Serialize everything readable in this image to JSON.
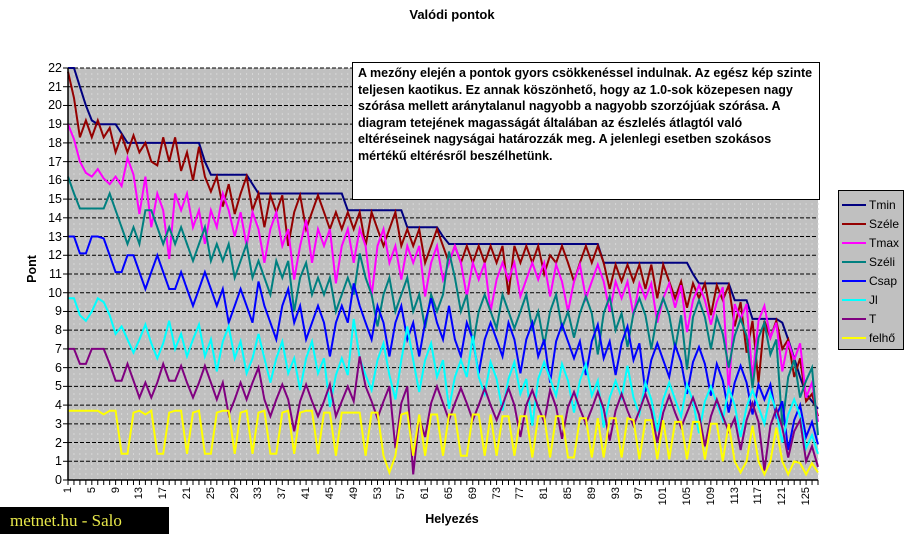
{
  "title": "Valódi pontok",
  "annotation": "A mezőny elején a pontok gyors csökkenéssel indulnak. Az egész kép szinte teljesen kaotikus. Ez annak köszönhető, hogy az 1.0-sok közepesen nagy szórása mellett aránytalanul nagyobb a nagyobb szorzójúak szórása. A diagram tetejének magasságát általában az észlelés átlagtól való eltéréseinek nagyságai határozzák meg. A jelenlegi esetben szokásos mértékű eltérésről beszélhetünk.",
  "watermark": "metnet.hu - Salo",
  "chart_data": {
    "type": "line",
    "title": "Valódi pontok",
    "xlabel": "Helyezés",
    "ylabel": "Pont",
    "ylim": [
      0,
      22
    ],
    "x_range": [
      1,
      127
    ],
    "grid": {
      "horizontal": true,
      "vertical": true,
      "h_color": "#000000",
      "v_color": "#D6D6D6"
    },
    "plot_bg": "#C0C0C0",
    "legend_position": "right",
    "y_ticks": [
      0,
      1,
      2,
      3,
      4,
      5,
      6,
      7,
      8,
      9,
      10,
      11,
      12,
      13,
      14,
      15,
      16,
      17,
      18,
      19,
      20,
      21,
      22
    ],
    "x_tick_labels": [
      1,
      5,
      9,
      13,
      17,
      21,
      25,
      29,
      33,
      37,
      41,
      45,
      49,
      53,
      57,
      61,
      65,
      69,
      73,
      77,
      81,
      85,
      89,
      93,
      97,
      101,
      105,
      109,
      113,
      117,
      121,
      125
    ],
    "series": [
      {
        "name": "Tmin",
        "color": "#000080",
        "values": [
          22,
          22,
          21,
          20,
          19.2,
          19,
          19,
          19,
          19,
          18.5,
          18,
          18,
          18,
          18,
          18,
          18,
          18,
          18,
          18,
          18,
          18,
          18,
          18,
          17,
          16.3,
          16.3,
          16.3,
          16.3,
          16.3,
          16.3,
          16.3,
          15.8,
          15.3,
          15.3,
          15.3,
          15.3,
          15.3,
          15.3,
          15.3,
          15.3,
          15.3,
          15.3,
          15.3,
          15.3,
          15.3,
          15.3,
          15.3,
          14.4,
          14.4,
          14.4,
          14.4,
          14.4,
          14.4,
          14.4,
          14.4,
          14.4,
          14.4,
          13.5,
          13.5,
          13.5,
          13.5,
          13.5,
          13.5,
          13,
          12.6,
          12.6,
          12.6,
          12.6,
          12.6,
          12.6,
          12.6,
          12.6,
          12.6,
          12.6,
          12.6,
          12.6,
          12.6,
          12.6,
          12.6,
          12.6,
          12.6,
          12.6,
          12.6,
          12.6,
          12.6,
          12.6,
          12.6,
          12.6,
          12.6,
          12.6,
          11.6,
          11.6,
          11.6,
          11.6,
          11.6,
          11.6,
          11.6,
          11.6,
          11.6,
          11.6,
          11.6,
          11.6,
          11.6,
          11.6,
          11.6,
          11,
          10.5,
          10.5,
          10.5,
          10.5,
          10.5,
          10.5,
          9.6,
          9.6,
          9.6,
          8.6,
          8.6,
          8.6,
          8.6,
          8.6,
          8.4,
          7.5,
          6.5,
          5.5,
          4.6,
          4.2,
          3.8
        ]
      },
      {
        "name": "Széle",
        "color": "#940000",
        "values": [
          21.8,
          20.4,
          18.3,
          19.2,
          18.3,
          19.2,
          18.3,
          18.8,
          17.5,
          18.4,
          17.5,
          18.4,
          17.5,
          18,
          17,
          16.8,
          18.3,
          17,
          18.3,
          16.5,
          17.5,
          16,
          17.8,
          16.2,
          15.4,
          16.2,
          14.6,
          15.8,
          14.2,
          15.3,
          16.2,
          14.4,
          15.3,
          13.5,
          15.2,
          14.3,
          15.2,
          12.5,
          14.3,
          15.2,
          13.4,
          14.3,
          15.2,
          14.3,
          13.4,
          14.3,
          13.4,
          14.3,
          13.4,
          14.3,
          12.5,
          14.3,
          13.4,
          12.5,
          13.4,
          14.3,
          12.5,
          13.4,
          12.5,
          13.4,
          11.6,
          12.5,
          13.4,
          12.5,
          11.6,
          12.5,
          11.6,
          12.5,
          11.6,
          12.5,
          11.6,
          12.5,
          11.6,
          12.5,
          9.9,
          12.5,
          11.6,
          12.5,
          11.6,
          12.5,
          11,
          12,
          11.6,
          12.5,
          11.6,
          10.6,
          11.6,
          12.5,
          11.6,
          12.5,
          11.6,
          10.2,
          11.5,
          10.6,
          11.5,
          10.6,
          11.5,
          10.2,
          11.5,
          9.7,
          11.5,
          10.6,
          9.7,
          10.6,
          9.2,
          10.5,
          9.7,
          10.5,
          8.8,
          10.4,
          9.6,
          10.4,
          8.2,
          9.5,
          6.8,
          8.5,
          5.2,
          8.5,
          7.6,
          8.5,
          7,
          7.5,
          5.5,
          6.5,
          4.2,
          4.6,
          3.4
        ]
      },
      {
        "name": "Tmax",
        "color": "#FF00FF",
        "values": [
          19,
          18.2,
          17,
          16.4,
          16.2,
          16.6,
          16.1,
          15.8,
          16.2,
          15.7,
          17.2,
          16.3,
          14.2,
          16.2,
          13.5,
          15.3,
          14.4,
          11.8,
          15.3,
          14.4,
          15.3,
          13.5,
          14.4,
          12.6,
          14.4,
          13.5,
          15.3,
          14.4,
          13,
          14.3,
          12.5,
          14.3,
          13.4,
          11.6,
          13.4,
          14.3,
          12.5,
          13.4,
          10.7,
          12.5,
          13.9,
          11.6,
          13.4,
          12.5,
          13.4,
          10.5,
          12.5,
          13.4,
          11.6,
          13.4,
          12.5,
          9.8,
          12.5,
          13.4,
          11.6,
          12.5,
          10.7,
          12.5,
          11.6,
          12.5,
          9.8,
          11.6,
          12.5,
          10.7,
          11.6,
          12.5,
          11.6,
          9.8,
          11.6,
          10.7,
          11.6,
          9,
          10.7,
          11.6,
          10.7,
          11.6,
          9.8,
          10.7,
          11.6,
          10.7,
          11.6,
          9.8,
          11.5,
          10.6,
          9,
          10.6,
          11.5,
          9.7,
          10.6,
          11.5,
          10.6,
          9,
          10.6,
          9.7,
          10.6,
          8.8,
          10.5,
          9.7,
          10.5,
          8.4,
          9.7,
          10.5,
          9.2,
          10.4,
          7.9,
          9.6,
          10.4,
          9.6,
          8.3,
          9.5,
          10.3,
          4.7,
          9.4,
          8.6,
          9.4,
          5.4,
          8.5,
          9.3,
          7.6,
          8.4,
          5.8,
          7.4,
          6.4,
          7.3,
          4.4,
          5.2,
          3.1
        ]
      },
      {
        "name": "Széli",
        "color": "#008080",
        "values": [
          16.2,
          15.3,
          14.5,
          14.5,
          14.5,
          14.5,
          14.5,
          15.3,
          14.4,
          13.5,
          12.6,
          13.5,
          12.6,
          14.4,
          14.4,
          13.5,
          12.6,
          13.5,
          12.6,
          13.5,
          12.6,
          11.7,
          12.6,
          13.5,
          11.7,
          12.6,
          11.7,
          12.6,
          10.8,
          11.7,
          12.6,
          10.8,
          11.7,
          10.8,
          9.9,
          11.7,
          10.8,
          11.7,
          9,
          10.8,
          11.6,
          9.9,
          10.8,
          9.9,
          10.8,
          9,
          9.9,
          10.8,
          9.9,
          12.1,
          10.8,
          9.9,
          8.2,
          9.9,
          10.8,
          9,
          9.9,
          10.8,
          9,
          9.9,
          8.1,
          9.9,
          9,
          9.9,
          12.2,
          10.8,
          9,
          9.9,
          7.2,
          9,
          9.9,
          9,
          8.1,
          9.9,
          9,
          8.1,
          9,
          9.9,
          8.1,
          9,
          7.2,
          9,
          9.9,
          8.1,
          9,
          7.6,
          8.9,
          9.8,
          8.9,
          6.7,
          8.9,
          9.8,
          8,
          8.9,
          7.1,
          8.9,
          9.7,
          8.8,
          7,
          8.8,
          9.7,
          8.8,
          7,
          8.8,
          5.9,
          8.7,
          9.6,
          8.7,
          7,
          8.7,
          7.8,
          6,
          7.7,
          8.6,
          7.7,
          4.9,
          7.6,
          8.4,
          6.7,
          7.5,
          2.9,
          5.5,
          6.4,
          4.4,
          5.3,
          6,
          2.4
        ]
      },
      {
        "name": "Csap",
        "color": "#0000FF",
        "values": [
          13,
          13,
          12.1,
          12.1,
          13,
          13,
          12.9,
          12,
          11.1,
          11.1,
          12,
          12,
          11.1,
          10.2,
          11.1,
          12,
          11.1,
          10.2,
          10.2,
          11.1,
          10.2,
          9.3,
          10.2,
          11.1,
          10.2,
          9.3,
          10.2,
          8.4,
          9.3,
          10.2,
          9.3,
          8.4,
          10.6,
          9.3,
          8.4,
          7.5,
          9.3,
          10.2,
          8.4,
          9.3,
          7.5,
          8.4,
          9.3,
          8.4,
          6.6,
          8.4,
          9.3,
          8.4,
          10.5,
          9.3,
          8.4,
          7.5,
          9.3,
          8.4,
          6.6,
          8.4,
          9.3,
          7.5,
          8.4,
          6.6,
          8.4,
          9.7,
          8.4,
          7.5,
          9.3,
          7.5,
          6.6,
          8.4,
          7.5,
          5.7,
          7.5,
          8.4,
          7.5,
          6.6,
          8.4,
          7.5,
          5.7,
          7.5,
          8.4,
          6.6,
          7.5,
          5.2,
          7.4,
          8.3,
          7.4,
          6.5,
          7.4,
          5.6,
          7.4,
          8.3,
          6.5,
          7.4,
          5.6,
          7.3,
          8.2,
          6.4,
          7.3,
          4.7,
          6.4,
          7.3,
          6.4,
          5.5,
          7.2,
          6.3,
          4.6,
          6.3,
          7.1,
          6.2,
          4.5,
          6.2,
          5.3,
          3.6,
          5.2,
          6.1,
          5.2,
          3.5,
          5.1,
          4.3,
          5.1,
          3.4,
          4.2,
          1.6,
          3.2,
          4,
          2.3,
          3.1,
          1.9
        ]
      },
      {
        "name": "Jl",
        "color": "#00FFFF",
        "values": [
          9.7,
          9.7,
          8.8,
          8.5,
          9,
          9.7,
          9.5,
          8.8,
          7.8,
          8.2,
          7.5,
          6.8,
          7.5,
          8.3,
          7.3,
          6.5,
          7.3,
          8.5,
          7,
          7.8,
          6.6,
          7.5,
          8.3,
          6.6,
          7.5,
          5.8,
          7.4,
          8.2,
          6.5,
          7.4,
          5.7,
          6.5,
          7.8,
          6.5,
          5.2,
          6.5,
          7.4,
          5.7,
          6.5,
          4.8,
          6.5,
          7.4,
          5.7,
          6.5,
          3.9,
          5.6,
          6.5,
          5.6,
          8.6,
          6.5,
          5.6,
          4.8,
          6.4,
          7.3,
          5.6,
          4.3,
          6.4,
          8.2,
          6.4,
          4.7,
          6.4,
          7.3,
          5.5,
          6.4,
          3.8,
          5.5,
          6.4,
          5.5,
          7.7,
          5.5,
          4.6,
          6.3,
          5.4,
          3.7,
          5.4,
          6.3,
          4.6,
          5.4,
          2.9,
          5.4,
          6.3,
          5.4,
          4.5,
          6.2,
          5.3,
          3.6,
          5.3,
          6.2,
          4.5,
          5.3,
          2.8,
          4.4,
          5.3,
          4.4,
          6.1,
          4.4,
          3.5,
          5.2,
          4.3,
          2.6,
          4.3,
          5.2,
          4.3,
          3.4,
          5.1,
          4.2,
          2.5,
          4.2,
          5,
          4.1,
          3.2,
          4.9,
          4,
          2.3,
          3.9,
          4.8,
          3.9,
          3,
          4.6,
          3.7,
          2,
          3.5,
          4.3,
          3.4,
          1.7,
          2.4,
          1.4
        ]
      },
      {
        "name": "T",
        "color": "#800080",
        "values": [
          7,
          7,
          6.2,
          6.2,
          7,
          7,
          7,
          6.2,
          5.3,
          5.3,
          6.2,
          5.3,
          4.4,
          5.2,
          4.4,
          5.2,
          6.2,
          5.3,
          5.3,
          6.1,
          5.2,
          4.4,
          5.2,
          6.1,
          5.2,
          4.3,
          5.2,
          3.5,
          4.3,
          5.2,
          4.3,
          5.2,
          6,
          4.3,
          3.4,
          4.3,
          5.1,
          4.3,
          2.6,
          4.2,
          5.1,
          4.2,
          3.4,
          4.2,
          5.1,
          3.4,
          4.2,
          5,
          4.2,
          6.6,
          5,
          4.2,
          3.3,
          4.2,
          5,
          1.7,
          4.1,
          5,
          0.3,
          3.3,
          2.3,
          4.1,
          5,
          4.1,
          3.2,
          4.1,
          4.9,
          4.1,
          3.2,
          4,
          4.9,
          4,
          3.2,
          4,
          4.9,
          4,
          2.3,
          4,
          4.8,
          3.9,
          3.1,
          4.8,
          3.9,
          2.2,
          3.9,
          4.7,
          3.8,
          3,
          3.8,
          4.7,
          3.8,
          2.1,
          3.7,
          4.6,
          3.7,
          2.9,
          3.7,
          4.6,
          3.7,
          2,
          3.6,
          4.5,
          3.6,
          2.8,
          3.6,
          4.4,
          3.5,
          1.8,
          3.4,
          4.3,
          3.4,
          2.6,
          3.3,
          1.6,
          3.2,
          4.1,
          3.1,
          0.5,
          2.9,
          3.8,
          2.8,
          1.2,
          2.6,
          3.2,
          1,
          1.8,
          0.7
        ]
      },
      {
        "name": "felhő",
        "color": "#FFFF00",
        "values": [
          3.7,
          3.7,
          3.7,
          3.7,
          3.7,
          3.7,
          3.5,
          3.7,
          3.7,
          1.4,
          1.4,
          3.6,
          3.7,
          3.5,
          3.7,
          1.4,
          1.4,
          3.6,
          3.7,
          3.7,
          1.4,
          3.6,
          3.7,
          1.4,
          1.4,
          3.6,
          3.7,
          3.7,
          1.4,
          3.6,
          3.7,
          1.4,
          3.6,
          3.7,
          1.4,
          1.4,
          3.6,
          3.7,
          1.4,
          3.6,
          3.7,
          3.7,
          1.4,
          3.6,
          3.6,
          1.3,
          3.6,
          3.6,
          3.6,
          3.6,
          1.3,
          3.6,
          3.6,
          1.3,
          0.4,
          1.3,
          3.5,
          3.6,
          1.3,
          3.5,
          1.3,
          3.5,
          3.5,
          1.3,
          3.5,
          3.5,
          1.3,
          1.3,
          3.5,
          3.5,
          1.3,
          3.5,
          1.3,
          3.4,
          3.4,
          1.3,
          3.4,
          3.4,
          1.2,
          3.4,
          3.4,
          1.2,
          3.4,
          3.4,
          1.2,
          1.2,
          3.3,
          3.3,
          1.2,
          3.3,
          1.2,
          3.3,
          3.3,
          1.2,
          3.3,
          3.2,
          1.1,
          3.2,
          3.2,
          1.1,
          3.2,
          1.1,
          3.1,
          3.1,
          1.1,
          3.1,
          3.1,
          1.1,
          3,
          3,
          1,
          3,
          1,
          0.4,
          1,
          2.9,
          1,
          0.3,
          1,
          2.8,
          1,
          0.3,
          1,
          0.9,
          0.3,
          0.9,
          0.4
        ]
      }
    ]
  }
}
